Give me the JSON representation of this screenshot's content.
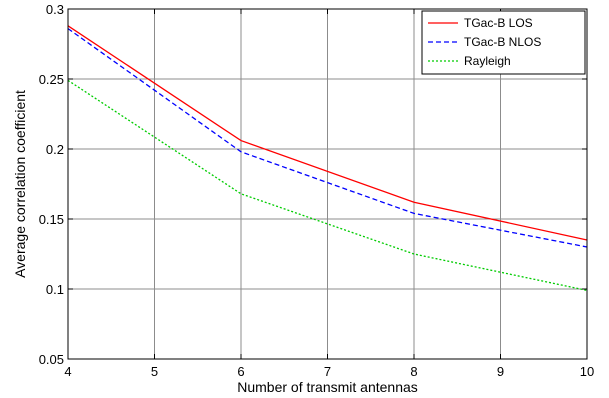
{
  "chart_data": {
    "type": "line",
    "xlabel": "Number of transmit antennas",
    "ylabel": "Average correlation coefficient",
    "xlim": [
      4,
      10
    ],
    "ylim": [
      0.05,
      0.3
    ],
    "xticks": [
      4,
      5,
      6,
      7,
      8,
      9,
      10
    ],
    "yticks": [
      0.05,
      0.1,
      0.15,
      0.2,
      0.25,
      0.3
    ],
    "grid": true,
    "legend_position": "top-right",
    "x": [
      4,
      6,
      8,
      10
    ],
    "series": [
      {
        "name": "TGac-B LOS",
        "values": [
          0.288,
          0.206,
          0.162,
          0.135
        ],
        "color": "#ff0000",
        "style": "solid"
      },
      {
        "name": "TGac-B NLOS",
        "values": [
          0.286,
          0.198,
          0.154,
          0.13
        ],
        "color": "#0000ff",
        "style": "dashed"
      },
      {
        "name": "Rayleigh",
        "values": [
          0.249,
          0.168,
          0.125,
          0.099
        ],
        "color": "#00cc00",
        "style": "dotted"
      }
    ]
  }
}
